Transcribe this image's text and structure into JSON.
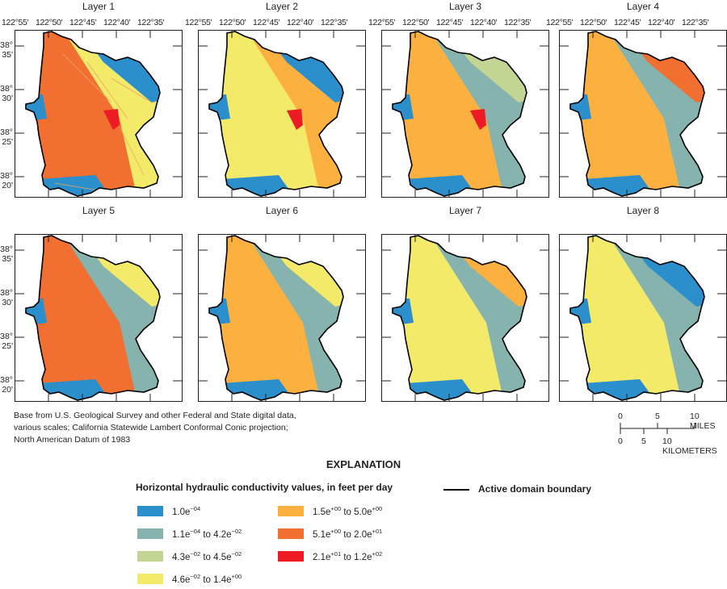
{
  "panels": [
    {
      "title": "Layer 1",
      "show_lon": true,
      "show_lat": true,
      "dominant": "orange",
      "second": "yellow",
      "third": "blue",
      "has_red": true,
      "has_streams": true
    },
    {
      "title": "Layer 2",
      "show_lon": true,
      "show_lat": false,
      "dominant": "yellow",
      "second": "lightorange",
      "third": "blue",
      "has_red": true,
      "has_streams": false
    },
    {
      "title": "Layer 3",
      "show_lon": true,
      "show_lat": false,
      "dominant": "lightorange",
      "second": "teal",
      "third": "green",
      "has_red": true,
      "has_streams": false
    },
    {
      "title": "Layer 4",
      "show_lon": true,
      "show_lat": false,
      "dominant": "lightorange",
      "second": "teal",
      "third": "orange",
      "has_red": false,
      "has_streams": false
    },
    {
      "title": "Layer 5",
      "show_lon": false,
      "show_lat": true,
      "dominant": "orange",
      "second": "teal",
      "third": "yellow",
      "has_red": false,
      "has_streams": false
    },
    {
      "title": "Layer 6",
      "show_lon": false,
      "show_lat": false,
      "dominant": "lightorange",
      "second": "teal",
      "third": "yellow",
      "has_red": false,
      "has_streams": false
    },
    {
      "title": "Layer 7",
      "show_lon": false,
      "show_lat": false,
      "dominant": "yellow",
      "second": "teal",
      "third": "lightorange",
      "has_red": false,
      "has_streams": false
    },
    {
      "title": "Layer 8",
      "show_lon": false,
      "show_lat": false,
      "dominant": "yellow",
      "second": "teal",
      "third": "blue",
      "has_red": false,
      "has_streams": false
    }
  ],
  "lon_labels": [
    "122°55'",
    "122°50'",
    "122°45'",
    "122°40'",
    "122°35'"
  ],
  "lat_labels": [
    {
      "deg": "38°",
      "min": "35'"
    },
    {
      "deg": "38°",
      "min": "30'"
    },
    {
      "deg": "38°",
      "min": "25'"
    },
    {
      "deg": "38°",
      "min": "20'"
    }
  ],
  "credit": [
    "Base from U.S. Geological Survey and other Federal and State digital data,",
    "various scales; California Statewide Lambert Conformal Conic projection;",
    "North American Datum of 1983"
  ],
  "scale_bar": {
    "miles": [
      "0",
      "5",
      "10 MILES"
    ],
    "km": [
      "0",
      "5",
      "10 KILOMETERS"
    ]
  },
  "explanation": {
    "heading": "EXPLANATION",
    "legend_title": "Horizontal hydraulic conductivity values, in feet per day",
    "classes": [
      {
        "key": "blue",
        "color": "#2b8fcb",
        "a_base": "1.0e",
        "a_exp": "−04",
        "b_base": "",
        "b_exp": ""
      },
      {
        "key": "teal",
        "color": "#86b3ad",
        "a_base": "1.1e",
        "a_exp": "−04",
        "b_base": "4.2e",
        "b_exp": "−02"
      },
      {
        "key": "green",
        "color": "#c3d592",
        "a_base": "4.3e",
        "a_exp": "−02",
        "b_base": "4.5e",
        "b_exp": "−02"
      },
      {
        "key": "yellow",
        "color": "#f3ea6a",
        "a_base": "4.6e",
        "a_exp": "−02",
        "b_base": "1.4e",
        "b_exp": "+00"
      },
      {
        "key": "lightorange",
        "color": "#fbb040",
        "a_base": "1.5e",
        "a_exp": "+00",
        "b_base": "5.0e",
        "b_exp": "+00"
      },
      {
        "key": "orange",
        "color": "#f26f32",
        "a_base": "5.1e",
        "a_exp": "+00",
        "b_base": "2.0e",
        "b_exp": "+01"
      },
      {
        "key": "red",
        "color": "#ed1c24",
        "a_base": "2.1e",
        "a_exp": "+01",
        "b_base": "1.2e",
        "b_exp": "+02"
      }
    ],
    "to_word": "to",
    "boundary_label": "Active domain boundary"
  }
}
